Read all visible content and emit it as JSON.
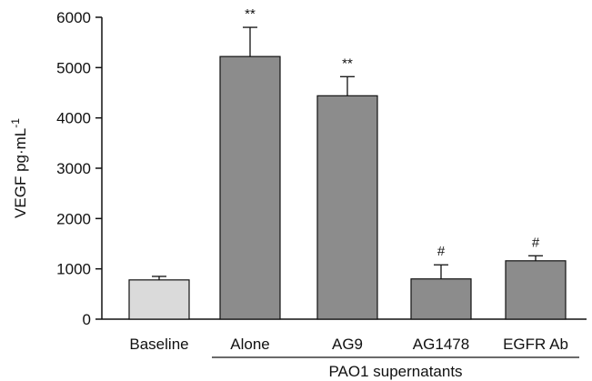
{
  "chart_data": {
    "type": "bar",
    "title": "",
    "ylabel": "VEGF pg·mL",
    "ylabel_superscript": "-1",
    "xlabel": "",
    "ylim": [
      0,
      6000
    ],
    "yticks": [
      0,
      1000,
      2000,
      3000,
      4000,
      5000,
      6000
    ],
    "categories": [
      "Baseline",
      "Alone",
      "AG9",
      "AG1478",
      "EGFR Ab"
    ],
    "values": [
      780,
      5220,
      4440,
      800,
      1160
    ],
    "errors": [
      70,
      580,
      380,
      280,
      100
    ],
    "annotations": [
      "",
      "**",
      "**",
      "#",
      "#"
    ],
    "bar_colors": [
      "#dadada",
      "#8c8c8c",
      "#8c8c8c",
      "#8c8c8c",
      "#8c8c8c"
    ],
    "group_label": "PAO1 supernatants",
    "group_categories": [
      "Alone",
      "AG9",
      "AG1478",
      "EGFR Ab"
    ],
    "grid": false,
    "legend": "none"
  }
}
